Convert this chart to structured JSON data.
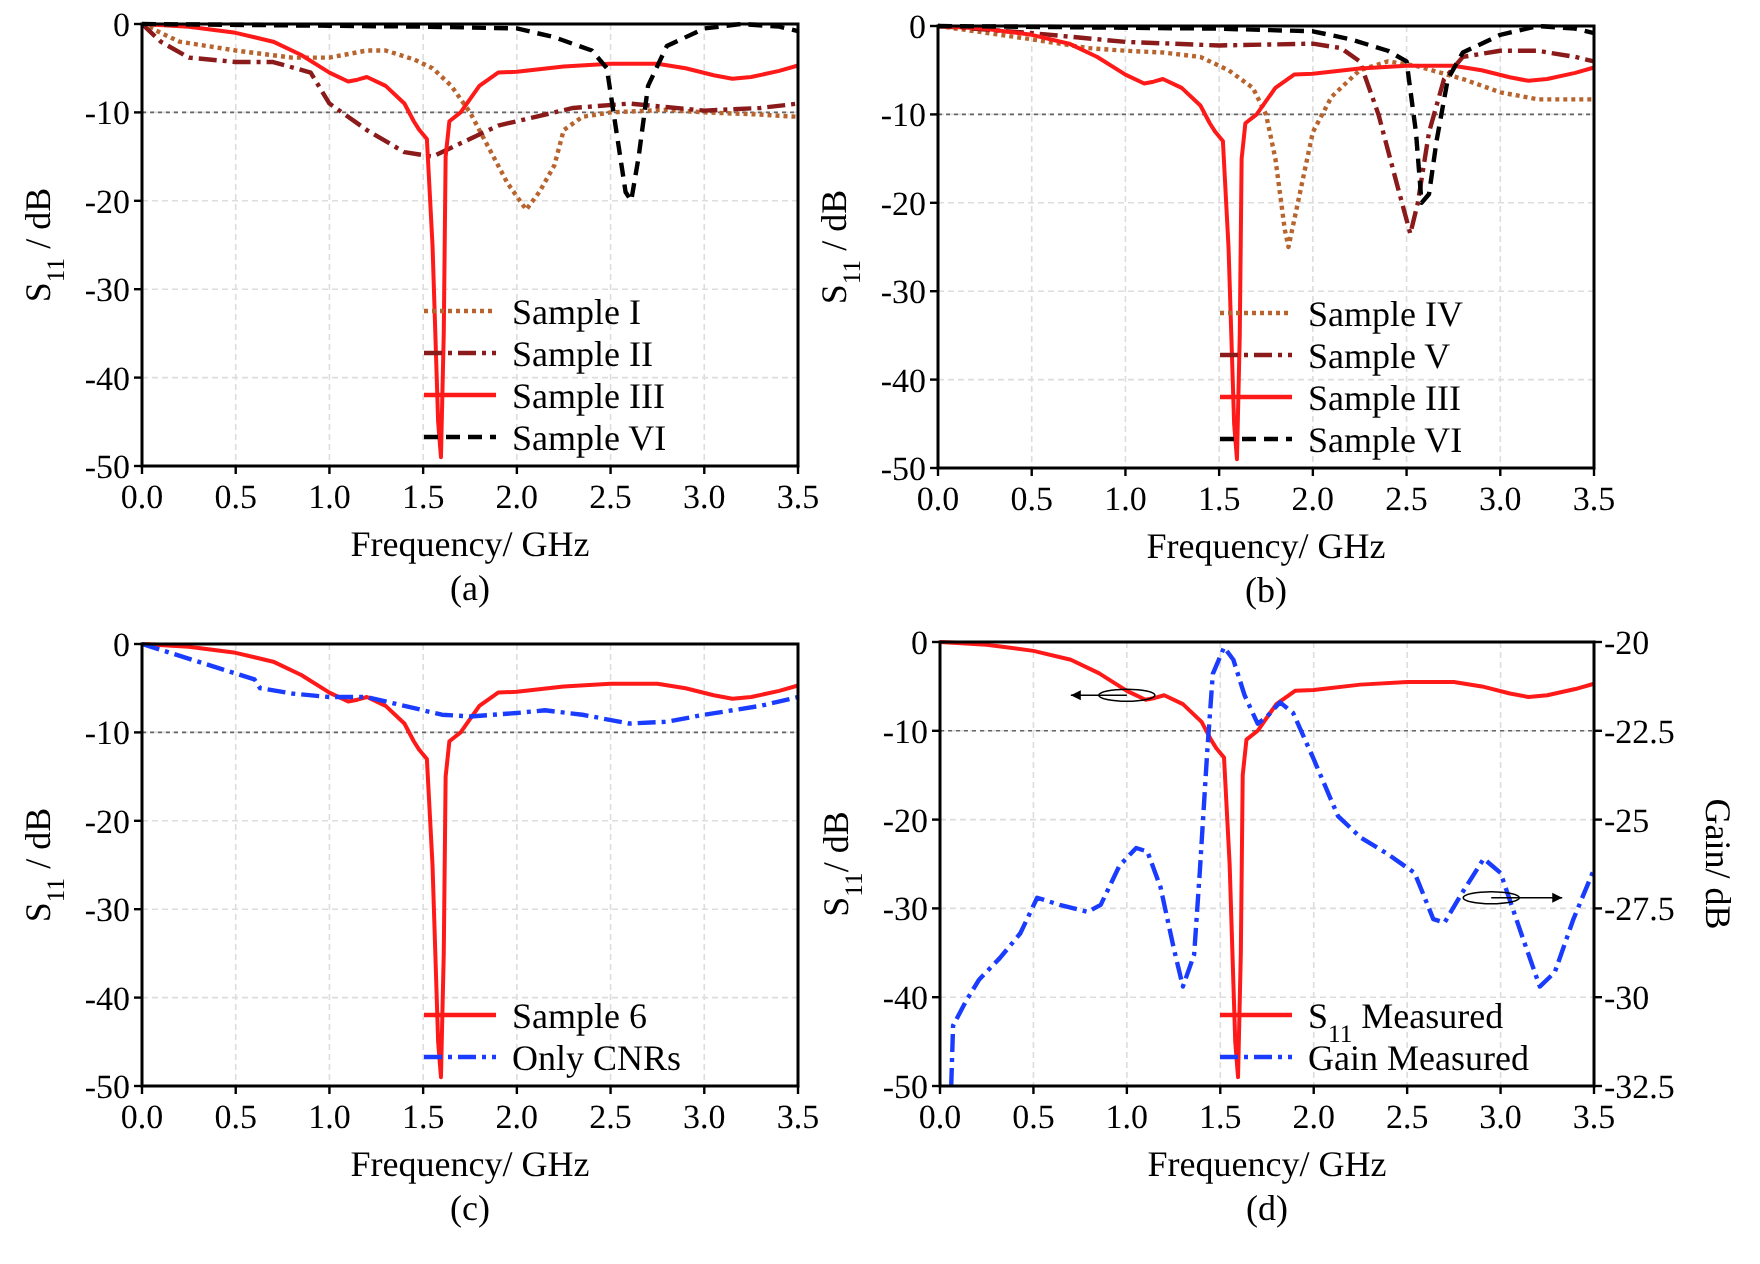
{
  "chart_data": [
    {
      "type": "line",
      "xlabel": "Frequency/ GHz",
      "ylabel": "S$_{11}$ / dB",
      "annotations": [
        "(a)"
      ],
      "xlim": [
        0,
        3.5
      ],
      "ylim": [
        -50,
        0
      ],
      "xticks": [
        {
          "value": 0,
          "label": "0.0"
        },
        {
          "value": 0.5,
          "label": "0.5"
        },
        {
          "value": 1,
          "label": "1.0"
        },
        {
          "value": 1.5,
          "label": "1.5"
        },
        {
          "value": 2,
          "label": "2.0"
        },
        {
          "value": 2.5,
          "label": "2.5"
        },
        {
          "value": 3,
          "label": "3.0"
        },
        {
          "value": 3.5,
          "label": "3.5"
        }
      ],
      "yticks": [
        0,
        -10,
        -20,
        -30,
        -40,
        -50
      ],
      "grid": true,
      "legend": "bottom right",
      "ref_lines": [
        {
          "axis": "y",
          "value": -10,
          "color": "#666666",
          "line_style": "dotted"
        }
      ],
      "series": [
        {
          "name": "Sample I",
          "color": "#b8642e",
          "line_style": "dotted",
          "x": [
            0,
            0.2,
            0.5,
            0.8,
            1.0,
            1.2,
            1.3,
            1.45,
            1.55,
            1.65,
            1.75,
            1.85,
            1.95,
            2.05,
            2.12,
            2.2,
            2.25,
            2.35,
            2.5,
            2.8,
            3.0,
            3.25,
            3.5
          ],
          "values": [
            0,
            -2,
            -3,
            -3.8,
            -3.8,
            -3,
            -3,
            -4,
            -5,
            -7,
            -10,
            -14,
            -18,
            -21,
            -19,
            -16,
            -12,
            -10.5,
            -10,
            -9.7,
            -10,
            -10.2,
            -10.5
          ]
        },
        {
          "name": "Sample II",
          "color": "#8b1a1a",
          "line_style": "dashdot",
          "x": [
            0,
            0.1,
            0.25,
            0.5,
            0.7,
            0.9,
            1.0,
            1.2,
            1.4,
            1.55,
            1.7,
            1.9,
            2.1,
            2.3,
            2.6,
            3.0,
            3.3,
            3.5
          ],
          "values": [
            0,
            -2,
            -3.8,
            -4.3,
            -4.3,
            -5.5,
            -9,
            -12,
            -14.5,
            -15,
            -13.5,
            -11.5,
            -10.5,
            -9.5,
            -9,
            -9.8,
            -9.5,
            -9
          ]
        },
        {
          "name": "Sample III",
          "color": "#ff1a1a",
          "line_style": "solid",
          "x": [
            0,
            0.25,
            0.5,
            0.7,
            0.85,
            1.0,
            1.1,
            1.15,
            1.2,
            1.3,
            1.4,
            1.45,
            1.48,
            1.52,
            1.55,
            1.58,
            1.595,
            1.61,
            1.62,
            1.64,
            1.7,
            1.8,
            1.9,
            2.0,
            2.25,
            2.5,
            2.75,
            2.9,
            3.05,
            3.15,
            3.25,
            3.4,
            3.5
          ],
          "values": [
            0,
            -0.3,
            -1,
            -2,
            -3.5,
            -5.5,
            -6.5,
            -6.3,
            -6,
            -7,
            -9,
            -11,
            -12,
            -13,
            -25,
            -45,
            -49,
            -35,
            -15,
            -11,
            -10,
            -7,
            -5.5,
            -5.4,
            -4.8,
            -4.5,
            -4.5,
            -5,
            -5.8,
            -6.2,
            -6,
            -5.3,
            -4.7
          ]
        },
        {
          "name": "Sample VI",
          "color": "#000000",
          "line_style": "dashed",
          "x": [
            0,
            1.0,
            1.5,
            2.0,
            2.2,
            2.4,
            2.48,
            2.53,
            2.58,
            2.61,
            2.65,
            2.7,
            2.8,
            3.0,
            3.2,
            3.4,
            3.5
          ],
          "values": [
            0,
            -0.2,
            -0.3,
            -0.5,
            -1.5,
            -3,
            -5,
            -12,
            -19,
            -20,
            -15,
            -7,
            -2.5,
            -0.5,
            0,
            -0.3,
            -0.8
          ]
        }
      ]
    },
    {
      "type": "line",
      "xlabel": "Frequency/ GHz",
      "ylabel": "S$_{11}$ / dB",
      "annotations": [
        "(b)"
      ],
      "xlim": [
        0,
        3.5
      ],
      "ylim": [
        -50,
        0
      ],
      "xticks": [
        {
          "value": 0,
          "label": "0.0"
        },
        {
          "value": 0.5,
          "label": "0.5"
        },
        {
          "value": 1,
          "label": "1.0"
        },
        {
          "value": 1.5,
          "label": "1.5"
        },
        {
          "value": 2,
          "label": "2.0"
        },
        {
          "value": 2.5,
          "label": "2.5"
        },
        {
          "value": 3,
          "label": "3.0"
        },
        {
          "value": 3.5,
          "label": "3.5"
        }
      ],
      "yticks": [
        0,
        -10,
        -20,
        -30,
        -40,
        -50
      ],
      "grid": true,
      "legend": "bottom right",
      "ref_lines": [
        {
          "axis": "y",
          "value": -10,
          "color": "#666666",
          "line_style": "dotted"
        }
      ],
      "series": [
        {
          "name": "Sample IV",
          "color": "#b8642e",
          "line_style": "dotted",
          "x": [
            0,
            0.5,
            0.8,
            1.0,
            1.2,
            1.4,
            1.55,
            1.68,
            1.75,
            1.8,
            1.85,
            1.87,
            1.92,
            2.0,
            2.1,
            2.25,
            2.4,
            2.55,
            2.8,
            3.0,
            3.2,
            3.5
          ],
          "values": [
            0,
            -1.5,
            -2.5,
            -2.8,
            -3,
            -3.5,
            -5,
            -7,
            -10,
            -15,
            -23,
            -25,
            -20,
            -12,
            -8,
            -5,
            -4,
            -4.5,
            -6,
            -7.5,
            -8.3,
            -8.3
          ]
        },
        {
          "name": "Sample V",
          "color": "#8b1a1a",
          "line_style": "dashdot",
          "x": [
            0,
            0.5,
            1.0,
            1.5,
            2.0,
            2.15,
            2.25,
            2.35,
            2.45,
            2.52,
            2.56,
            2.62,
            2.7,
            2.8,
            3.0,
            3.2,
            3.4,
            3.5
          ],
          "values": [
            0,
            -0.8,
            -1.8,
            -2.2,
            -2,
            -2.5,
            -4,
            -10,
            -18,
            -23.5,
            -20,
            -12,
            -6,
            -3.5,
            -2.8,
            -2.8,
            -3.5,
            -4
          ]
        },
        {
          "name": "Sample III",
          "color": "#ff1a1a",
          "line_style": "solid",
          "x": [
            0,
            0.25,
            0.5,
            0.7,
            0.85,
            1.0,
            1.1,
            1.15,
            1.2,
            1.3,
            1.4,
            1.45,
            1.48,
            1.52,
            1.55,
            1.58,
            1.595,
            1.61,
            1.62,
            1.64,
            1.7,
            1.8,
            1.9,
            2.0,
            2.25,
            2.5,
            2.75,
            2.9,
            3.05,
            3.15,
            3.25,
            3.4,
            3.5
          ],
          "values": [
            0,
            -0.3,
            -1,
            -2,
            -3.5,
            -5.5,
            -6.5,
            -6.3,
            -6,
            -7,
            -9,
            -11,
            -12,
            -13,
            -25,
            -45,
            -49,
            -35,
            -15,
            -11,
            -10,
            -7,
            -5.5,
            -5.4,
            -4.8,
            -4.5,
            -4.5,
            -5,
            -5.8,
            -6.2,
            -6,
            -5.3,
            -4.7
          ]
        },
        {
          "name": "Sample VI",
          "color": "#000000",
          "line_style": "dashed",
          "x": [
            0,
            1.5,
            2.0,
            2.2,
            2.4,
            2.5,
            2.55,
            2.58,
            2.62,
            2.66,
            2.72,
            2.8,
            3.0,
            3.2,
            3.4,
            3.5
          ],
          "values": [
            0,
            -0.3,
            -0.6,
            -1.5,
            -2.8,
            -4,
            -12,
            -20,
            -19,
            -13,
            -6,
            -3,
            -1,
            0,
            -0.3,
            -0.8
          ]
        }
      ]
    },
    {
      "type": "line",
      "xlabel": "Frequency/ GHz",
      "ylabel": "S$_{11}$ / dB",
      "annotations": [
        "(c)"
      ],
      "xlim": [
        0,
        3.5
      ],
      "ylim": [
        -50,
        0
      ],
      "xticks": [
        {
          "value": 0,
          "label": "0.0"
        },
        {
          "value": 0.5,
          "label": "0.5"
        },
        {
          "value": 1,
          "label": "1.0"
        },
        {
          "value": 1.5,
          "label": "1.5"
        },
        {
          "value": 2,
          "label": "2.0"
        },
        {
          "value": 2.5,
          "label": "2.5"
        },
        {
          "value": 3,
          "label": "3.0"
        },
        {
          "value": 3.5,
          "label": "3.5"
        }
      ],
      "yticks": [
        0,
        -10,
        -20,
        -30,
        -40,
        -50
      ],
      "grid": true,
      "legend": "bottom right",
      "ref_lines": [
        {
          "axis": "y",
          "value": -10,
          "color": "#666666",
          "line_style": "dotted"
        }
      ],
      "series": [
        {
          "name": "Sample 6",
          "color": "#ff1a1a",
          "line_style": "solid",
          "x": [
            0,
            0.25,
            0.5,
            0.7,
            0.85,
            1.0,
            1.1,
            1.15,
            1.2,
            1.3,
            1.4,
            1.45,
            1.48,
            1.52,
            1.55,
            1.58,
            1.595,
            1.61,
            1.62,
            1.64,
            1.7,
            1.8,
            1.9,
            2.0,
            2.25,
            2.5,
            2.75,
            2.9,
            3.05,
            3.15,
            3.25,
            3.4,
            3.5
          ],
          "values": [
            0,
            -0.3,
            -1,
            -2,
            -3.5,
            -5.5,
            -6.5,
            -6.3,
            -6,
            -7,
            -9,
            -11,
            -12,
            -13,
            -25,
            -45,
            -49,
            -35,
            -15,
            -11,
            -10,
            -7,
            -5.5,
            -5.4,
            -4.8,
            -4.5,
            -4.5,
            -5,
            -5.8,
            -6.2,
            -6,
            -5.3,
            -4.7
          ]
        },
        {
          "name": "Only CNRs",
          "color": "#1a3cff",
          "line_style": "dashdot",
          "x": [
            0,
            0.3,
            0.6,
            0.63,
            0.8,
            1.0,
            1.2,
            1.4,
            1.6,
            1.75,
            2.0,
            2.15,
            2.35,
            2.6,
            2.8,
            3.0,
            3.3,
            3.5
          ],
          "values": [
            0,
            -2,
            -4,
            -5,
            -5.6,
            -6,
            -6,
            -7,
            -8,
            -8.2,
            -7.8,
            -7.5,
            -8,
            -9,
            -8.8,
            -8,
            -7,
            -6
          ]
        }
      ]
    },
    {
      "type": "line",
      "xlabel": "Frequency/ GHz",
      "ylabel": "S$_{11}$/ dB",
      "y2label": "Gain/ dB",
      "annotations": [
        "(d)"
      ],
      "xlim": [
        0,
        3.5
      ],
      "ylim": [
        -50,
        0
      ],
      "y2lim": [
        -32.5,
        -20
      ],
      "xticks": [
        {
          "value": 0,
          "label": "0.0"
        },
        {
          "value": 0.5,
          "label": "0.5"
        },
        {
          "value": 1,
          "label": "1.0"
        },
        {
          "value": 1.5,
          "label": "1.5"
        },
        {
          "value": 2,
          "label": "2.0"
        },
        {
          "value": 2.5,
          "label": "2.5"
        },
        {
          "value": 3,
          "label": "3.0"
        },
        {
          "value": 3.5,
          "label": "3.5"
        }
      ],
      "yticks": [
        0,
        -10,
        -20,
        -30,
        -40,
        -50
      ],
      "y2ticks": [
        -20,
        -22.5,
        -25,
        -27.5,
        -30,
        -32.5
      ],
      "grid": true,
      "legend": "bottom right",
      "ref_lines": [
        {
          "axis": "y",
          "value": -10,
          "color": "#666666",
          "line_style": "dotted"
        }
      ],
      "series": [
        {
          "name": "S$_{11}$ Measured",
          "color": "#ff1a1a",
          "line_style": "solid",
          "x": [
            0,
            0.25,
            0.5,
            0.7,
            0.85,
            1.0,
            1.1,
            1.15,
            1.2,
            1.3,
            1.4,
            1.45,
            1.48,
            1.52,
            1.55,
            1.58,
            1.595,
            1.61,
            1.62,
            1.64,
            1.7,
            1.8,
            1.9,
            2.0,
            2.25,
            2.5,
            2.75,
            2.9,
            3.05,
            3.15,
            3.25,
            3.4,
            3.5
          ],
          "values": [
            0,
            -0.3,
            -1,
            -2,
            -3.5,
            -5.5,
            -6.5,
            -6.3,
            -6,
            -7,
            -9,
            -11,
            -12,
            -13,
            -25,
            -45,
            -49,
            -35,
            -15,
            -11,
            -10,
            -7,
            -5.5,
            -5.4,
            -4.8,
            -4.5,
            -4.5,
            -5,
            -5.8,
            -6.2,
            -6,
            -5.3,
            -4.7
          ]
        },
        {
          "name": "Gain Measured",
          "color": "#1a3cff",
          "line_style": "dashdot",
          "axis": "y2",
          "x": [
            0.06,
            0.07,
            0.14,
            0.21,
            0.32,
            0.43,
            0.52,
            0.64,
            0.79,
            0.86,
            0.96,
            1.05,
            1.11,
            1.18,
            1.25,
            1.3,
            1.36,
            1.39,
            1.43,
            1.46,
            1.52,
            1.57,
            1.63,
            1.7,
            1.75,
            1.82,
            1.89,
            2.0,
            2.13,
            2.25,
            2.39,
            2.54,
            2.64,
            2.7,
            2.79,
            2.91,
            3.0,
            3.11,
            3.21,
            3.29,
            3.39,
            3.5
          ],
          "values": [
            -32.5,
            -30.8,
            -30.1,
            -29.5,
            -28.9,
            -28.2,
            -27.2,
            -27.4,
            -27.6,
            -27.4,
            -26.3,
            -25.8,
            -25.9,
            -26.9,
            -28.6,
            -29.7,
            -28.8,
            -26.5,
            -23.1,
            -20.9,
            -20.15,
            -20.5,
            -21.5,
            -22.3,
            -22.1,
            -21.7,
            -22,
            -23.3,
            -24.9,
            -25.5,
            -25.95,
            -26.5,
            -27.8,
            -27.9,
            -27.1,
            -26.1,
            -26.5,
            -28.2,
            -29.7,
            -29.3,
            -27.8,
            -26.4
          ]
        }
      ]
    }
  ]
}
